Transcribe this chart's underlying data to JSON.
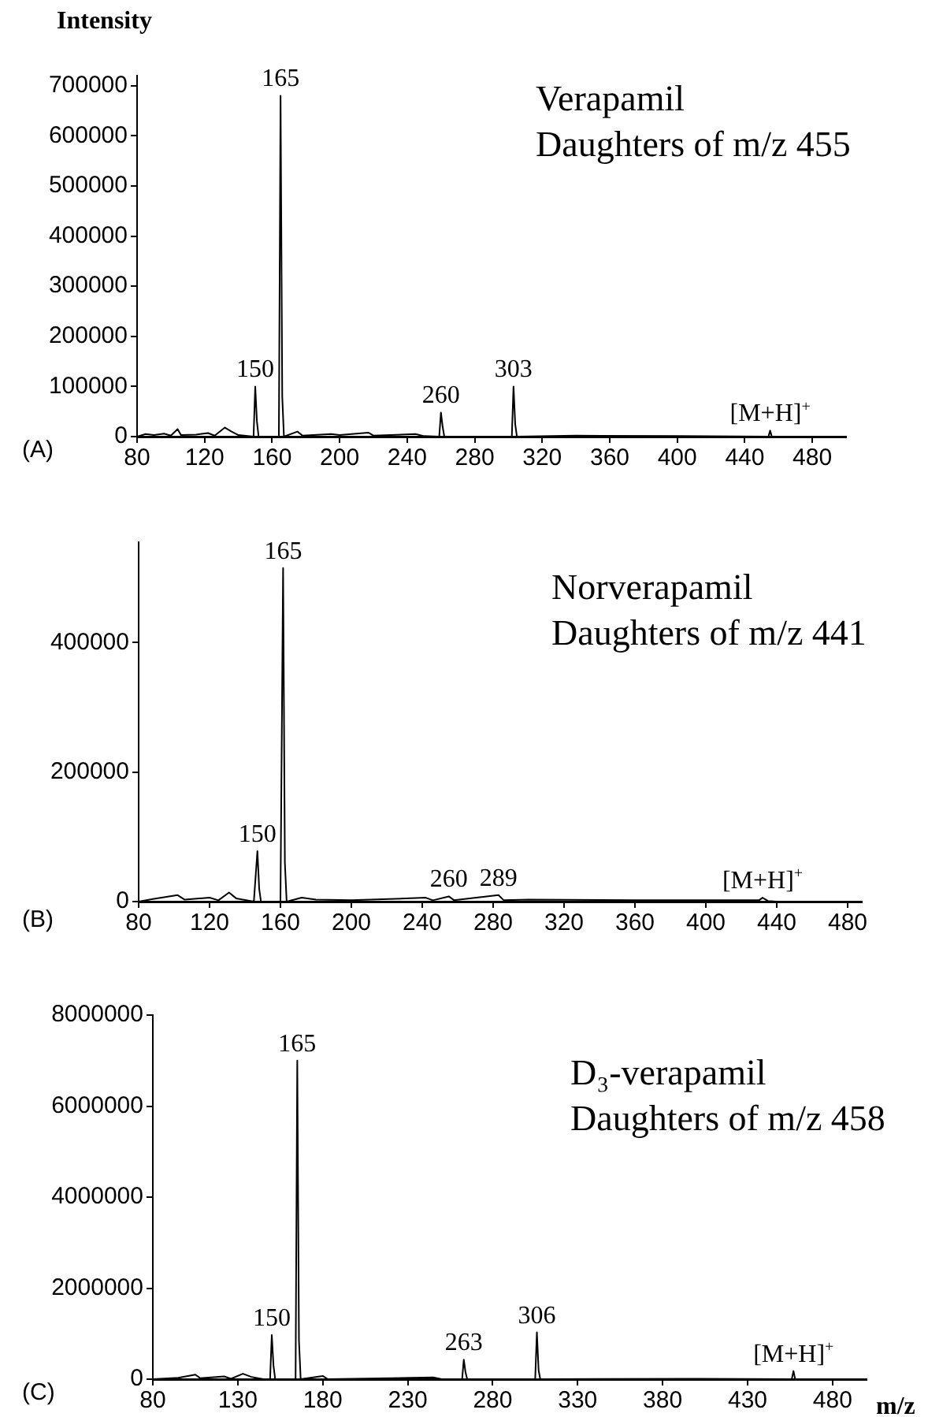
{
  "chart_data": [
    {
      "type": "line",
      "ylabel": "Intensity",
      "color": "#000000",
      "marker": "none",
      "grid": false,
      "legend": false,
      "x": [
        80,
        85,
        90,
        96,
        100,
        104,
        106,
        115,
        122,
        126,
        132,
        136,
        140,
        149,
        150,
        151,
        152,
        164,
        165,
        166,
        167,
        175,
        178,
        195,
        200,
        217,
        220,
        245,
        250,
        259,
        260,
        261,
        262,
        302,
        303,
        304,
        305,
        340,
        400,
        454,
        455,
        456,
        500
      ],
      "values": [
        0,
        5000,
        3000,
        6000,
        2000,
        15000,
        3000,
        4000,
        7000,
        2000,
        18000,
        10000,
        3000,
        0,
        100000,
        30000,
        0,
        0,
        680000,
        80000,
        0,
        10000,
        2000,
        5000,
        3000,
        8000,
        2000,
        5000,
        1000,
        0,
        48000,
        20000,
        0,
        0,
        100000,
        25000,
        0,
        2000,
        1000,
        0,
        12000,
        0,
        0
      ],
      "xlim": [
        80,
        500
      ],
      "xticks": [
        80,
        120,
        160,
        200,
        240,
        280,
        320,
        360,
        400,
        440,
        480
      ],
      "ylim": [
        0,
        720000
      ],
      "yticks": [
        0,
        100000,
        200000,
        300000,
        400000,
        500000,
        600000,
        700000
      ],
      "annotations": [
        "(A)",
        "Verapamil\nDaughters of m/z 455",
        {
          "text": "150",
          "x": 150,
          "y": 100000
        },
        {
          "text": "165",
          "x": 165,
          "y": 680000
        },
        {
          "text": "260",
          "x": 260,
          "y": 48000
        },
        {
          "text": "303",
          "x": 303,
          "y": 100000
        },
        {
          "text": "[M+H]$^{+}$",
          "x": 455,
          "y": 12000
        }
      ]
    },
    {
      "type": "line",
      "color": "#000000",
      "marker": "none",
      "grid": false,
      "legend": false,
      "x": [
        80,
        88,
        102,
        106,
        120,
        125,
        131,
        135,
        145,
        147,
        148,
        149,
        160,
        161.5,
        162.5,
        163.5,
        172,
        180,
        200,
        242,
        246,
        255,
        258,
        283,
        286,
        300,
        360,
        430,
        432,
        435,
        440
      ],
      "values": [
        0,
        4000,
        10000,
        3000,
        6000,
        2000,
        14000,
        5000,
        0,
        78000,
        20000,
        0,
        0,
        515000,
        60000,
        0,
        6000,
        3000,
        2000,
        6000,
        2000,
        8000,
        2000,
        10000,
        2000,
        3000,
        2000,
        2000,
        6000,
        1000,
        0
      ],
      "xlim": [
        80,
        488
      ],
      "xticks": [
        80,
        120,
        160,
        200,
        240,
        280,
        320,
        360,
        400,
        440,
        480
      ],
      "ylim": [
        0,
        555000
      ],
      "yticks": [
        0,
        200000,
        400000
      ],
      "annotations": [
        "(B)",
        "Norverapamil\nDaughters of m/z 441",
        {
          "text": "150",
          "x": 147,
          "y": 78000
        },
        {
          "text": "165",
          "x": 161.5,
          "y": 515000
        },
        {
          "text": "260",
          "x": 255,
          "y": 8000
        },
        {
          "text": "289",
          "x": 283,
          "y": 10000
        },
        {
          "text": "[M+H]$^{+}$",
          "x": 432,
          "y": 6000
        }
      ]
    },
    {
      "type": "line",
      "xlabel": "m/z",
      "color": "#000000",
      "marker": "none",
      "grid": false,
      "legend": false,
      "x": [
        80,
        95,
        105,
        108,
        122,
        126,
        133,
        138,
        145,
        149,
        150,
        151,
        152,
        164,
        165,
        166,
        167,
        180,
        183,
        220,
        245,
        250,
        262,
        263,
        264,
        265,
        305,
        306,
        307,
        308,
        400,
        456,
        457,
        458,
        500
      ],
      "values": [
        0,
        30000,
        100000,
        20000,
        60000,
        10000,
        120000,
        50000,
        0,
        0,
        970000,
        300000,
        0,
        0,
        7000000,
        840000,
        0,
        70000,
        0,
        20000,
        40000,
        0,
        0,
        430000,
        150000,
        0,
        0,
        1030000,
        200000,
        0,
        10000,
        0,
        180000,
        0,
        0
      ],
      "xlim": [
        80,
        500
      ],
      "xticks": [
        80,
        130,
        180,
        230,
        280,
        330,
        380,
        430,
        480
      ],
      "ylim": [
        0,
        8000000
      ],
      "yticks": [
        0,
        2000000,
        4000000,
        6000000,
        8000000
      ],
      "annotations": [
        "(C)",
        "D₃-verapamil\nDaughters of m/z 458",
        {
          "text": "150",
          "x": 150,
          "y": 970000
        },
        {
          "text": "165",
          "x": 165,
          "y": 7000000
        },
        {
          "text": "263",
          "x": 263,
          "y": 430000
        },
        {
          "text": "306",
          "x": 306,
          "y": 1030000
        },
        {
          "text": "[M+H]$^{+}$",
          "x": 457,
          "y": 180000
        }
      ]
    }
  ]
}
